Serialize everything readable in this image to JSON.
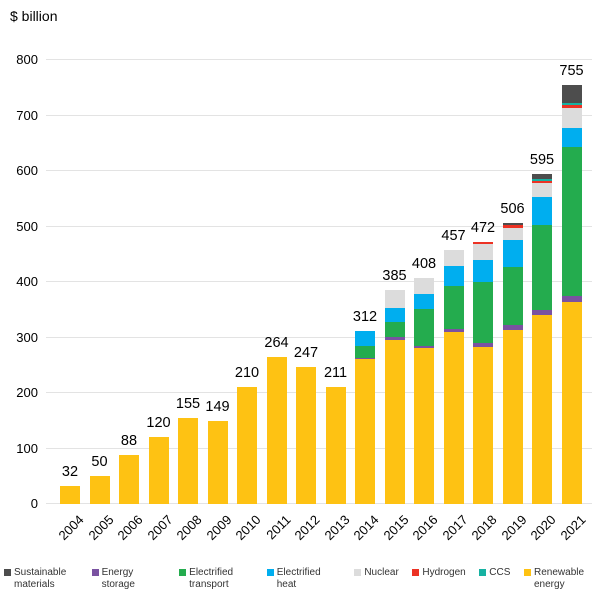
{
  "chart_data": {
    "type": "bar",
    "stacked": true,
    "title": "$ billion",
    "ylabel": "$ billion",
    "xlabel": "",
    "ylim": [
      0,
      800
    ],
    "y_ticks": [
      0,
      100,
      200,
      300,
      400,
      500,
      600,
      700,
      800
    ],
    "grid": true,
    "categories": [
      "2004",
      "2005",
      "2006",
      "2007",
      "2008",
      "2009",
      "2010",
      "2011",
      "2012",
      "2013",
      "2014",
      "2015",
      "2016",
      "2017",
      "2018",
      "2019",
      "2020",
      "2021"
    ],
    "totals": [
      32,
      50,
      88,
      120,
      155,
      149,
      210,
      264,
      247,
      211,
      312,
      385,
      408,
      457,
      472,
      506,
      595,
      755
    ],
    "series": [
      {
        "name": "Renewable energy",
        "color": "#FEC213",
        "values": [
          32,
          50,
          88,
          120,
          155,
          149,
          210,
          264,
          247,
          211,
          262,
          296,
          281,
          310,
          283,
          313,
          341,
          364
        ]
      },
      {
        "name": "Energy storage",
        "color": "#7A52A1",
        "values": [
          0,
          0,
          0,
          0,
          0,
          0,
          0,
          0,
          0,
          0,
          1,
          5,
          4,
          6,
          8,
          9,
          9,
          10
        ]
      },
      {
        "name": "Electrified transport",
        "color": "#24AC4E",
        "values": [
          0,
          0,
          0,
          0,
          0,
          0,
          0,
          0,
          0,
          0,
          21,
          27,
          66,
          77,
          109,
          105,
          153,
          270
        ]
      },
      {
        "name": "Electrified heat",
        "color": "#00AEEF",
        "values": [
          0,
          0,
          0,
          0,
          0,
          0,
          0,
          0,
          0,
          0,
          28,
          26,
          27,
          36,
          39,
          48,
          51,
          34
        ]
      },
      {
        "name": "Nuclear",
        "color": "#DCDCDC",
        "values": [
          0,
          0,
          0,
          0,
          0,
          0,
          0,
          0,
          0,
          0,
          0,
          31,
          30,
          28,
          30,
          22,
          24,
          36
        ]
      },
      {
        "name": "Hydrogen",
        "color": "#EC3224",
        "values": [
          0,
          0,
          0,
          0,
          0,
          0,
          0,
          0,
          0,
          0,
          0,
          0,
          0,
          0,
          3,
          5,
          4,
          5
        ]
      },
      {
        "name": "CCS",
        "color": "#16B2A2",
        "values": [
          0,
          0,
          0,
          0,
          0,
          0,
          0,
          0,
          0,
          0,
          0,
          0,
          0,
          0,
          0,
          0,
          3.5,
          4
        ]
      },
      {
        "name": "Sustainable materials",
        "color": "#4D4D4D",
        "values": [
          0,
          0,
          0,
          0,
          0,
          0,
          0,
          0,
          0,
          0,
          0,
          0,
          0,
          0,
          0,
          4,
          9.5,
          32
        ]
      }
    ],
    "legend": {
      "position": "bottom",
      "items": [
        {
          "label": "Sustainable materials",
          "color": "#4D4D4D"
        },
        {
          "label": "Energy storage",
          "color": "#7A52A1"
        },
        {
          "label": "Electrified transport",
          "color": "#24AC4E"
        },
        {
          "label": "Electrified heat",
          "color": "#00AEEF"
        },
        {
          "label": "Nuclear",
          "color": "#DCDCDC"
        },
        {
          "label": "Hydrogen",
          "color": "#EC3224"
        },
        {
          "label": "CCS",
          "color": "#16B2A2"
        },
        {
          "label": "Renewable energy",
          "color": "#FEC213"
        }
      ]
    }
  }
}
